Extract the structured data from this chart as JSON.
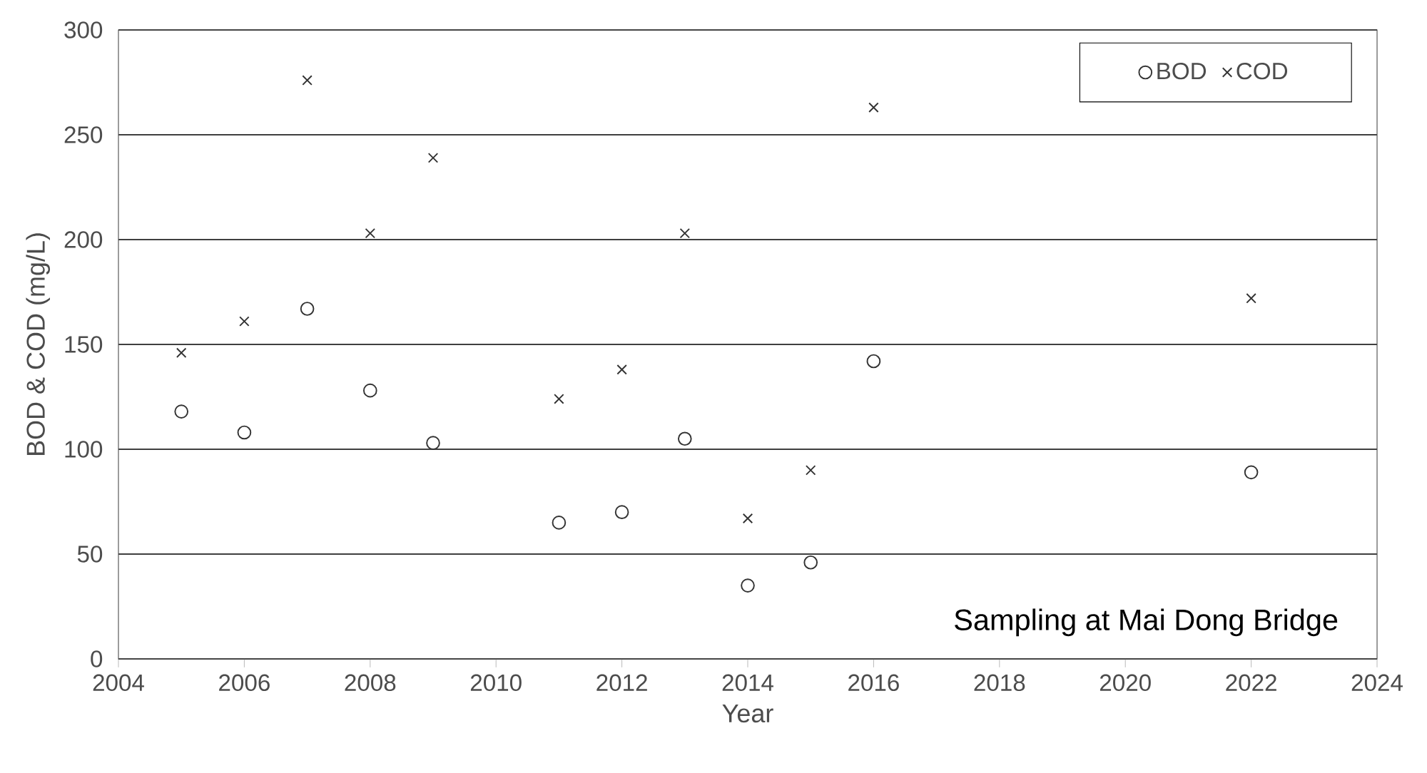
{
  "chart_data": {
    "type": "scatter",
    "xlabel": "Year",
    "ylabel": "BOD & COD (mg/L)",
    "x": [
      2005,
      2006,
      2007,
      2008,
      2009,
      2011,
      2012,
      2013,
      2014,
      2015,
      2016,
      2022
    ],
    "series": [
      {
        "name": "BOD",
        "color": "#333333",
        "marker": "circle",
        "values": [
          118,
          108,
          167,
          128,
          103,
          65,
          70,
          105,
          35,
          46,
          142,
          89
        ]
      },
      {
        "name": "COD",
        "color": "#333333",
        "marker": "cross",
        "values": [
          146,
          161,
          276,
          203,
          239,
          124,
          138,
          203,
          67,
          90,
          263,
          172
        ]
      }
    ],
    "xlim": [
      2004,
      2024
    ],
    "xticks": [
      2004,
      2006,
      2008,
      2010,
      2012,
      2014,
      2016,
      2018,
      2020,
      2022,
      2024
    ],
    "ylim": [
      0,
      300
    ],
    "yticks": [
      0,
      50,
      100,
      150,
      200,
      250,
      300
    ],
    "grid": "y",
    "legend": "top right",
    "annotations": [
      "Sampling at Mai Dong Bridge"
    ]
  }
}
